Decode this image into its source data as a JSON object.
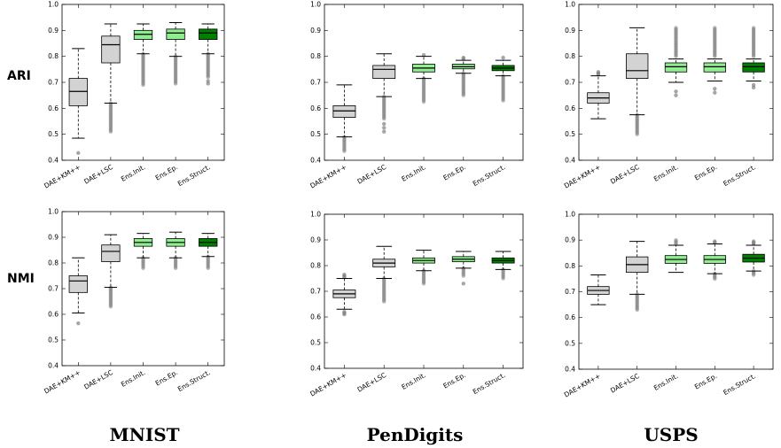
{
  "figure": {
    "row_labels": [
      "ARI",
      "NMI"
    ],
    "column_labels": [
      "MNIST",
      "PenDigits",
      "USPS"
    ]
  },
  "styles": {
    "box_colors": [
      "#d3d3d3",
      "#d3d3d3",
      "#90ee90",
      "#90ee90",
      "#008000"
    ],
    "outlier_color": "#808080"
  },
  "chart_data": [
    {
      "type": "box",
      "metric": "ARI",
      "dataset": "MNIST",
      "ylim": [
        0.4,
        1.0
      ],
      "yticks": [
        "0.4",
        "0.5",
        "0.6",
        "0.7",
        "0.8",
        "0.9",
        "1.0"
      ],
      "categories": [
        "DAE+KM++",
        "DAE+LSC",
        "Ens.Init.",
        "Ens.Ep.",
        "Ens.Struct."
      ],
      "boxes": [
        {
          "whislo": 0.485,
          "q1": 0.61,
          "med": 0.665,
          "q3": 0.715,
          "whishi": 0.83,
          "outliers": [
            0.428
          ]
        },
        {
          "whislo": 0.62,
          "q1": 0.775,
          "med": 0.845,
          "q3": 0.878,
          "whishi": 0.925,
          "outlier_range": [
            0.51,
            0.62
          ]
        },
        {
          "whislo": 0.81,
          "q1": 0.865,
          "med": 0.885,
          "q3": 0.9,
          "whishi": 0.925,
          "outlier_range": [
            0.69,
            0.81
          ]
        },
        {
          "whislo": 0.8,
          "q1": 0.865,
          "med": 0.89,
          "q3": 0.905,
          "whishi": 0.93,
          "outlier_range": [
            0.695,
            0.8
          ]
        },
        {
          "whislo": 0.81,
          "q1": 0.865,
          "med": 0.89,
          "q3": 0.905,
          "whishi": 0.925,
          "outlier_range": [
            0.72,
            0.81
          ],
          "outliers": [
            0.695,
            0.705
          ]
        }
      ]
    },
    {
      "type": "box",
      "metric": "ARI",
      "dataset": "PenDigits",
      "ylim": [
        0.4,
        1.0
      ],
      "yticks": [
        "0.4",
        "0.5",
        "0.6",
        "0.7",
        "0.8",
        "0.9",
        "1.0"
      ],
      "categories": [
        "DAE+KM++",
        "DAE+LSC",
        "Ens.Init.",
        "Ens.Ep.",
        "Ens.Struct."
      ],
      "boxes": [
        {
          "whislo": 0.49,
          "q1": 0.565,
          "med": 0.59,
          "q3": 0.61,
          "whishi": 0.69,
          "outlier_range": [
            0.435,
            0.49
          ]
        },
        {
          "whislo": 0.645,
          "q1": 0.715,
          "med": 0.75,
          "q3": 0.765,
          "whishi": 0.81,
          "outlier_range": [
            0.56,
            0.645
          ],
          "outliers": [
            0.51,
            0.525,
            0.54
          ]
        },
        {
          "whislo": 0.715,
          "q1": 0.74,
          "med": 0.755,
          "q3": 0.77,
          "whishi": 0.8,
          "outlier_range": [
            0.625,
            0.715
          ],
          "outliers": [
            0.805
          ]
        },
        {
          "whislo": 0.735,
          "q1": 0.752,
          "med": 0.76,
          "q3": 0.77,
          "whishi": 0.785,
          "outlier_range": [
            0.65,
            0.735
          ],
          "outliers": [
            0.79,
            0.795
          ]
        },
        {
          "whislo": 0.725,
          "q1": 0.745,
          "med": 0.755,
          "q3": 0.765,
          "whishi": 0.785,
          "outlier_range": [
            0.63,
            0.725
          ],
          "outliers": [
            0.795
          ]
        }
      ]
    },
    {
      "type": "box",
      "metric": "ARI",
      "dataset": "USPS",
      "ylim": [
        0.4,
        1.0
      ],
      "yticks": [
        "0.4",
        "0.5",
        "0.6",
        "0.7",
        "0.8",
        "0.9",
        "1.0"
      ],
      "categories": [
        "DAE+KM++",
        "DAE+LSC",
        "Ens.Init.",
        "Ens.Ep.",
        "Ens.Struct."
      ],
      "boxes": [
        {
          "whislo": 0.56,
          "q1": 0.62,
          "med": 0.64,
          "q3": 0.66,
          "whishi": 0.725,
          "outliers": [
            0.73,
            0.735,
            0.74
          ]
        },
        {
          "whislo": 0.575,
          "q1": 0.715,
          "med": 0.745,
          "q3": 0.81,
          "whishi": 0.91,
          "outlier_range": [
            0.5,
            0.575
          ]
        },
        {
          "whislo": 0.7,
          "q1": 0.74,
          "med": 0.76,
          "q3": 0.775,
          "whishi": 0.79,
          "outlier_range": [
            0.8,
            0.91
          ],
          "outliers": [
            0.65,
            0.665
          ]
        },
        {
          "whislo": 0.705,
          "q1": 0.74,
          "med": 0.76,
          "q3": 0.775,
          "whishi": 0.79,
          "outlier_range": [
            0.8,
            0.91
          ],
          "outliers": [
            0.66,
            0.675
          ]
        },
        {
          "whislo": 0.705,
          "q1": 0.74,
          "med": 0.76,
          "q3": 0.775,
          "whishi": 0.79,
          "outlier_range": [
            0.8,
            0.91
          ],
          "outliers": [
            0.68,
            0.69
          ]
        }
      ]
    },
    {
      "type": "box",
      "metric": "NMI",
      "dataset": "MNIST",
      "ylim": [
        0.4,
        1.0
      ],
      "yticks": [
        "0.4",
        "0.5",
        "0.6",
        "0.7",
        "0.8",
        "0.9",
        "1.0"
      ],
      "categories": [
        "DAE+KM++",
        "DAE+LSC",
        "Ens.Init.",
        "Ens.Ep.",
        "Ens.Struct."
      ],
      "boxes": [
        {
          "whislo": 0.605,
          "q1": 0.685,
          "med": 0.73,
          "q3": 0.75,
          "whishi": 0.82,
          "outliers": [
            0.565
          ]
        },
        {
          "whislo": 0.705,
          "q1": 0.805,
          "med": 0.845,
          "q3": 0.87,
          "whishi": 0.91,
          "outlier_range": [
            0.63,
            0.705
          ]
        },
        {
          "whislo": 0.82,
          "q1": 0.865,
          "med": 0.88,
          "q3": 0.895,
          "whishi": 0.915,
          "outlier_range": [
            0.78,
            0.82
          ]
        },
        {
          "whislo": 0.82,
          "q1": 0.865,
          "med": 0.88,
          "q3": 0.895,
          "whishi": 0.92,
          "outlier_range": [
            0.78,
            0.82
          ]
        },
        {
          "whislo": 0.825,
          "q1": 0.865,
          "med": 0.88,
          "q3": 0.895,
          "whishi": 0.915,
          "outlier_range": [
            0.78,
            0.825
          ]
        }
      ]
    },
    {
      "type": "box",
      "metric": "NMI",
      "dataset": "PenDigits",
      "ylim": [
        0.4,
        1.0
      ],
      "yticks": [
        "0.4",
        "0.5",
        "0.6",
        "0.7",
        "0.8",
        "0.9",
        "1.0"
      ],
      "categories": [
        "DAE+KM++",
        "DAE+LSC",
        "Ens.Init.",
        "Ens.Ep.",
        "Ens.Struct."
      ],
      "boxes": [
        {
          "whislo": 0.63,
          "q1": 0.675,
          "med": 0.69,
          "q3": 0.705,
          "whishi": 0.75,
          "outliers": [
            0.61,
            0.615,
            0.62,
            0.755,
            0.76,
            0.765
          ]
        },
        {
          "whislo": 0.75,
          "q1": 0.795,
          "med": 0.81,
          "q3": 0.825,
          "whishi": 0.875,
          "outlier_range": [
            0.66,
            0.75
          ]
        },
        {
          "whislo": 0.78,
          "q1": 0.81,
          "med": 0.82,
          "q3": 0.83,
          "whishi": 0.86,
          "outlier_range": [
            0.73,
            0.78
          ]
        },
        {
          "whislo": 0.79,
          "q1": 0.815,
          "med": 0.825,
          "q3": 0.835,
          "whishi": 0.855,
          "outlier_range": [
            0.76,
            0.79
          ],
          "outliers": [
            0.73
          ]
        },
        {
          "whislo": 0.785,
          "q1": 0.81,
          "med": 0.82,
          "q3": 0.83,
          "whishi": 0.855,
          "outlier_range": [
            0.75,
            0.785
          ]
        }
      ]
    },
    {
      "type": "box",
      "metric": "NMI",
      "dataset": "USPS",
      "ylim": [
        0.4,
        1.0
      ],
      "yticks": [
        "0.4",
        "0.5",
        "0.6",
        "0.7",
        "0.8",
        "0.9",
        "1.0"
      ],
      "categories": [
        "DAE+KM++",
        "DAE+LSC",
        "Ens.Init.",
        "Ens.Ep.",
        "Ens.Struct."
      ],
      "boxes": [
        {
          "whislo": 0.65,
          "q1": 0.69,
          "med": 0.705,
          "q3": 0.72,
          "whishi": 0.765,
          "outliers": []
        },
        {
          "whislo": 0.69,
          "q1": 0.775,
          "med": 0.805,
          "q3": 0.835,
          "whishi": 0.895,
          "outlier_range": [
            0.63,
            0.69
          ]
        },
        {
          "whislo": 0.775,
          "q1": 0.81,
          "med": 0.825,
          "q3": 0.84,
          "whishi": 0.88,
          "outlier_range": [
            0.885,
            0.9
          ]
        },
        {
          "whislo": 0.77,
          "q1": 0.81,
          "med": 0.825,
          "q3": 0.84,
          "whishi": 0.885,
          "outlier_range": [
            0.75,
            0.77
          ],
          "outliers": [
            0.89,
            0.895
          ]
        },
        {
          "whislo": 0.78,
          "q1": 0.815,
          "med": 0.83,
          "q3": 0.845,
          "whishi": 0.88,
          "outlier_range": [
            0.765,
            0.78
          ],
          "outliers": [
            0.885,
            0.89,
            0.895
          ]
        }
      ]
    }
  ]
}
